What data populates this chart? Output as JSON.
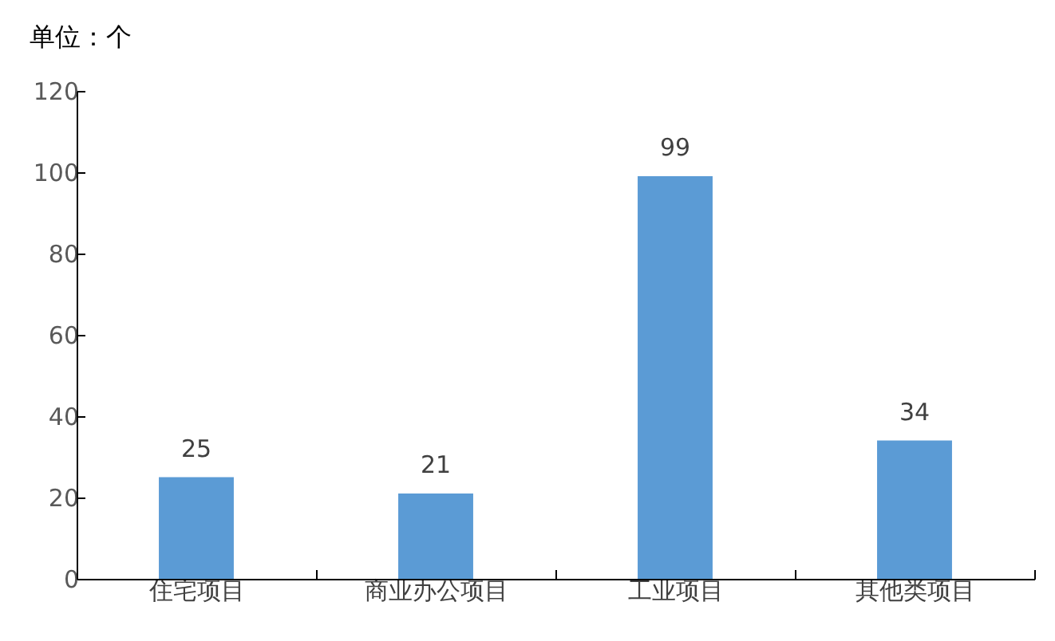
{
  "chart_data": {
    "type": "bar",
    "ylabel": "单位：个",
    "categories": [
      "住宅项目",
      "商业办公项目",
      "工业项目",
      "其他类项目"
    ],
    "values": [
      25,
      21,
      99,
      34
    ],
    "color": "#5b9bd5",
    "ylim": [
      0,
      120
    ],
    "yticks": [
      0,
      20,
      40,
      60,
      80,
      100,
      120
    ],
    "data_labels": true,
    "grid": false
  }
}
